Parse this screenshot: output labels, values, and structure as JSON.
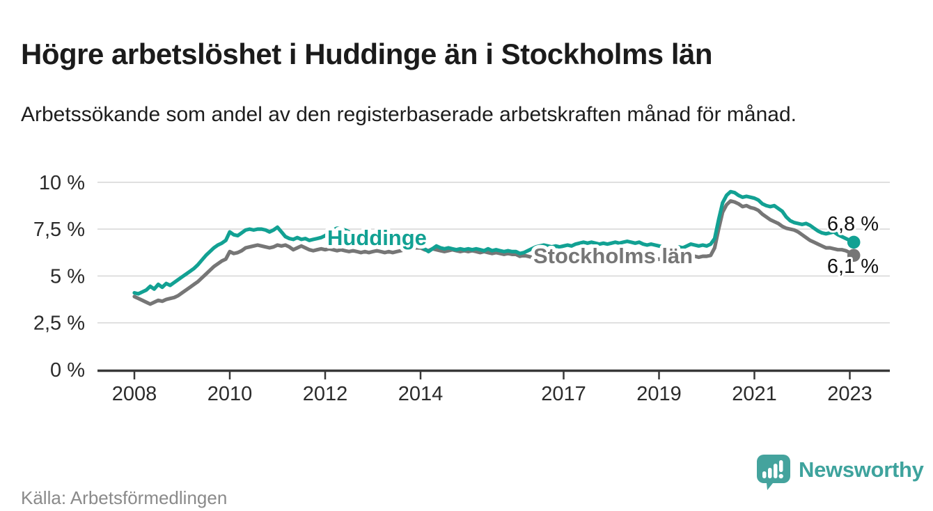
{
  "page": {
    "title": "Högre arbetslöshet i Huddinge än i Stockholms län",
    "subtitle": "Arbetssökande som andel av den registerbaserade arbetskraften månad för månad."
  },
  "footer": {
    "source": "Källa: Arbetsförmedlingen",
    "brand_name": "Newsworthy"
  },
  "colors": {
    "huddinge_teal": "#12A193",
    "stockholm_gray": "#767676",
    "brand_teal": "#44A39D",
    "axis_dark": "#383838",
    "gridline": "#d8d8d8",
    "tick_text": "#2b2b2b",
    "value_label_text": "#111111"
  },
  "chart_data": {
    "type": "line",
    "title": "Högre arbetslöshet i Huddinge än i Stockholms län",
    "xlabel": "",
    "ylabel": "Arbetssökande som andel av arbetskraften (%)",
    "grid": true,
    "legend_position": "inline-labels",
    "x_start_year": 2008.0,
    "x_step_months": 1,
    "x_end_year": 2023.08,
    "ylim": [
      0,
      10
    ],
    "x_ticks": [
      {
        "value": 2008,
        "label": "2008"
      },
      {
        "value": 2010,
        "label": "2010"
      },
      {
        "value": 2012,
        "label": "2012"
      },
      {
        "value": 2014,
        "label": "2014"
      },
      {
        "value": 2017,
        "label": "2017"
      },
      {
        "value": 2019,
        "label": "2019"
      },
      {
        "value": 2021,
        "label": "2021"
      },
      {
        "value": 2023,
        "label": "2023"
      }
    ],
    "y_ticks": [
      {
        "value": 0,
        "label": "0 %"
      },
      {
        "value": 2.5,
        "label": "2,5 %"
      },
      {
        "value": 5,
        "label": "5 %"
      },
      {
        "value": 7.5,
        "label": "7,5 %"
      },
      {
        "value": 10,
        "label": "10 %"
      }
    ],
    "series": [
      {
        "name": "Stockholms län",
        "color": "#767676",
        "end_label": "6,1 %",
        "end_value": 6.1,
        "values": [
          3.9,
          3.8,
          3.7,
          3.6,
          3.5,
          3.6,
          3.7,
          3.65,
          3.75,
          3.8,
          3.85,
          3.95,
          4.1,
          4.25,
          4.4,
          4.55,
          4.7,
          4.9,
          5.1,
          5.3,
          5.5,
          5.65,
          5.8,
          5.9,
          6.3,
          6.2,
          6.25,
          6.35,
          6.5,
          6.55,
          6.6,
          6.65,
          6.6,
          6.55,
          6.5,
          6.55,
          6.65,
          6.6,
          6.65,
          6.55,
          6.4,
          6.5,
          6.6,
          6.5,
          6.4,
          6.35,
          6.4,
          6.45,
          6.4,
          6.45,
          6.4,
          6.35,
          6.4,
          6.35,
          6.3,
          6.35,
          6.3,
          6.25,
          6.3,
          6.25,
          6.3,
          6.35,
          6.3,
          6.25,
          6.3,
          6.25,
          6.3,
          6.35,
          6.4,
          6.45,
          6.5,
          6.5,
          6.5,
          6.4,
          6.35,
          6.45,
          6.4,
          6.35,
          6.3,
          6.35,
          6.4,
          6.35,
          6.3,
          6.35,
          6.3,
          6.35,
          6.3,
          6.25,
          6.3,
          6.25,
          6.2,
          6.25,
          6.2,
          6.15,
          6.2,
          6.15,
          6.15,
          6.05,
          6.1,
          6.05,
          6.0,
          6.05,
          6.0,
          5.95,
          6.0,
          5.95,
          5.9,
          5.95,
          5.9,
          5.95,
          5.9,
          5.95,
          6.0,
          5.95,
          5.9,
          5.95,
          5.9,
          5.85,
          5.9,
          5.85,
          5.9,
          5.95,
          5.9,
          5.95,
          5.9,
          5.85,
          5.9,
          5.85,
          5.8,
          5.85,
          5.8,
          5.85,
          5.9,
          5.85,
          5.9,
          5.95,
          5.9,
          5.95,
          6.0,
          5.95,
          6.0,
          6.05,
          6.0,
          6.05,
          6.05,
          6.1,
          6.5,
          7.5,
          8.4,
          8.8,
          9.0,
          8.95,
          8.85,
          8.7,
          8.75,
          8.65,
          8.6,
          8.5,
          8.3,
          8.15,
          8.0,
          7.9,
          7.8,
          7.65,
          7.55,
          7.5,
          7.45,
          7.35,
          7.2,
          7.05,
          6.9,
          6.8,
          6.7,
          6.6,
          6.5,
          6.5,
          6.45,
          6.4,
          6.4,
          6.35,
          6.25,
          6.1
        ]
      },
      {
        "name": "Huddinge",
        "color": "#12A193",
        "end_label": "6,8 %",
        "end_value": 6.8,
        "values": [
          4.1,
          4.05,
          4.15,
          4.25,
          4.45,
          4.3,
          4.55,
          4.4,
          4.6,
          4.5,
          4.65,
          4.8,
          4.95,
          5.1,
          5.25,
          5.4,
          5.6,
          5.85,
          6.1,
          6.3,
          6.5,
          6.65,
          6.75,
          6.9,
          7.35,
          7.2,
          7.15,
          7.3,
          7.45,
          7.5,
          7.45,
          7.5,
          7.5,
          7.45,
          7.35,
          7.45,
          7.6,
          7.35,
          7.1,
          7.0,
          6.95,
          7.05,
          6.95,
          7.0,
          6.9,
          6.95,
          7.0,
          7.05,
          7.15,
          7.3,
          7.45,
          7.55,
          7.5,
          7.45,
          7.35,
          7.3,
          7.2,
          7.1,
          7.0,
          6.95,
          6.9,
          6.85,
          6.8,
          6.75,
          6.7,
          6.65,
          6.6,
          6.6,
          6.65,
          6.6,
          6.6,
          6.6,
          6.6,
          6.45,
          6.3,
          6.45,
          6.6,
          6.5,
          6.45,
          6.5,
          6.45,
          6.4,
          6.45,
          6.4,
          6.45,
          6.4,
          6.45,
          6.4,
          6.35,
          6.45,
          6.35,
          6.4,
          6.35,
          6.3,
          6.35,
          6.3,
          6.3,
          6.2,
          6.25,
          6.35,
          6.45,
          6.55,
          6.6,
          6.65,
          6.6,
          6.55,
          6.6,
          6.55,
          6.6,
          6.65,
          6.6,
          6.7,
          6.75,
          6.8,
          6.75,
          6.8,
          6.75,
          6.7,
          6.75,
          6.7,
          6.75,
          6.8,
          6.75,
          6.8,
          6.85,
          6.8,
          6.75,
          6.8,
          6.7,
          6.65,
          6.7,
          6.65,
          6.6,
          6.55,
          6.5,
          6.55,
          6.5,
          6.55,
          6.5,
          6.6,
          6.7,
          6.65,
          6.6,
          6.65,
          6.6,
          6.7,
          7.0,
          8.0,
          8.9,
          9.3,
          9.5,
          9.45,
          9.3,
          9.2,
          9.25,
          9.2,
          9.15,
          9.05,
          8.85,
          8.75,
          8.7,
          8.75,
          8.6,
          8.45,
          8.15,
          7.95,
          7.85,
          7.8,
          7.75,
          7.8,
          7.7,
          7.55,
          7.4,
          7.3,
          7.25,
          7.3,
          7.35,
          7.2,
          7.1,
          7.0,
          6.9,
          6.8
        ]
      }
    ]
  }
}
